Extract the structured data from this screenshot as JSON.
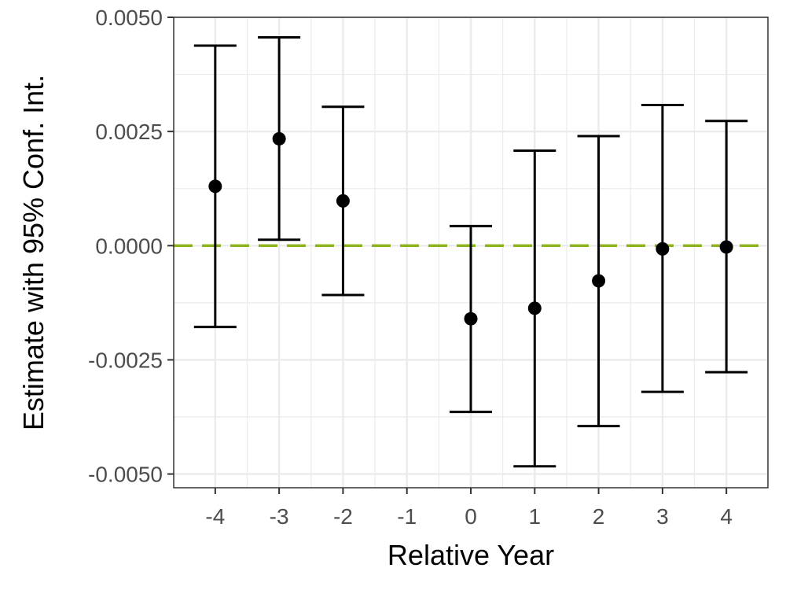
{
  "chart_data": {
    "type": "scatter",
    "title": "",
    "xlabel": "Relative Year",
    "ylabel": "Estimate with 95% Conf. Int.",
    "xlim": [
      -4.65,
      4.65
    ],
    "ylim": [
      -0.0053,
      0.005
    ],
    "x_ticks": [
      -4,
      -3,
      -2,
      -1,
      0,
      1,
      2,
      3,
      4
    ],
    "x_tick_labels": [
      "-4",
      "-3",
      "-2",
      "-1",
      "0",
      "1",
      "2",
      "3",
      "4"
    ],
    "y_ticks": [
      -0.005,
      -0.0025,
      0,
      0.0025,
      0.005
    ],
    "y_tick_labels": [
      "-0.0050",
      "-0.0025",
      "0.0000",
      "0.0025",
      "0.0050"
    ],
    "grid": true,
    "reference_line": {
      "y": 0,
      "style": "dashed",
      "color": "#8db31f"
    },
    "points": [
      {
        "x": -4,
        "estimate": 0.0013,
        "ci_low": -0.00178,
        "ci_high": 0.00438
      },
      {
        "x": -3,
        "estimate": 0.00234,
        "ci_low": 0.00013,
        "ci_high": 0.00456
      },
      {
        "x": -2,
        "estimate": 0.00098,
        "ci_low": -0.00108,
        "ci_high": 0.00304
      },
      {
        "x": 0,
        "estimate": -0.0016,
        "ci_low": -0.00364,
        "ci_high": 0.00043
      },
      {
        "x": 1,
        "estimate": -0.00137,
        "ci_low": -0.00483,
        "ci_high": 0.00208
      },
      {
        "x": 2,
        "estimate": -0.00077,
        "ci_low": -0.00395,
        "ci_high": 0.0024
      },
      {
        "x": 3,
        "estimate": -7e-05,
        "ci_low": -0.0032,
        "ci_high": 0.00308
      },
      {
        "x": 4,
        "estimate": -3e-05,
        "ci_low": -0.00277,
        "ci_high": 0.00273
      }
    ],
    "colors": {
      "points": "#000000",
      "grid": "#ebebeb",
      "panel_border": "#333333"
    }
  }
}
